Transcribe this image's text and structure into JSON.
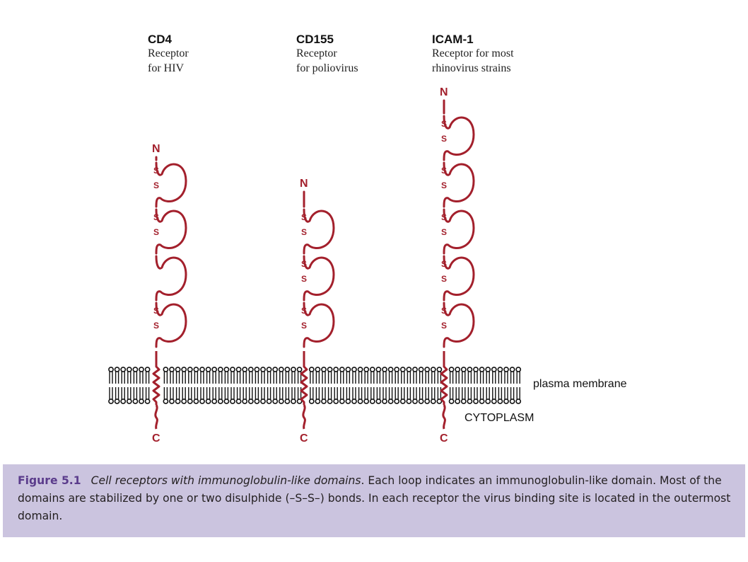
{
  "receptors": [
    {
      "name": "CD4",
      "desc1": "Receptor",
      "desc2": "for HIV",
      "n_label": "N",
      "c_label": "C",
      "domains": 4,
      "bonds": [
        1,
        1,
        0,
        1
      ]
    },
    {
      "name": "CD155",
      "desc1": "Receptor",
      "desc2": "for poliovirus",
      "n_label": "N",
      "c_label": "C",
      "domains": 3,
      "bonds": [
        1,
        1,
        1
      ]
    },
    {
      "name": "ICAM-1",
      "desc1": "Receptor for most",
      "desc2": "rhinovirus strains",
      "n_label": "N",
      "c_label": "C",
      "domains": 5,
      "bonds": [
        1,
        1,
        1,
        1,
        1
      ]
    }
  ],
  "disulphide_atom": "S",
  "membrane_label": "plasma membrane",
  "cytoplasm_label": "CYTOPLASM",
  "caption": {
    "fig_label": "Figure 5.1",
    "title": "Cell receptors with immunoglobulin-like domains",
    "text": ". Each loop indicates an immunoglobulin-like domain. Most of the domains are stabilized by one or two disulphide (–S–S–) bonds. In each receptor the virus binding site is located in the outermost domain."
  },
  "colors": {
    "protein": "#a3202c",
    "membrane": "#111111",
    "caption_bg": "#cbc4df",
    "figure_label": "#5b3c8c"
  }
}
